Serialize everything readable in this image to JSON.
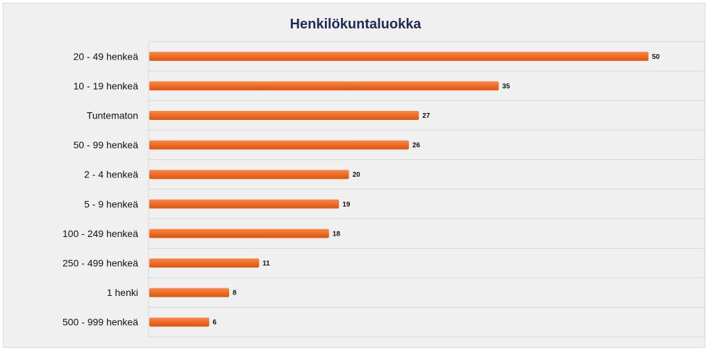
{
  "chart_data": {
    "type": "bar",
    "orientation": "horizontal",
    "title": "Henkilökuntaluokka",
    "xlabel": "",
    "ylabel": "",
    "categories": [
      "20 - 49 henkeä",
      "10 - 19 henkeä",
      "Tuntematon",
      "50 - 99 henkeä",
      "2 - 4 henkeä",
      "5 - 9 henkeä",
      "100 - 249 henkeä",
      "250 - 499 henkeä",
      "1 henki",
      "500 - 999 henkeä"
    ],
    "values": [
      50,
      35,
      27,
      26,
      20,
      19,
      18,
      11,
      8,
      6
    ],
    "xlim": [
      0,
      55
    ],
    "grid": "horizontal",
    "data_labels": true,
    "bar_color": "#f06a22"
  }
}
